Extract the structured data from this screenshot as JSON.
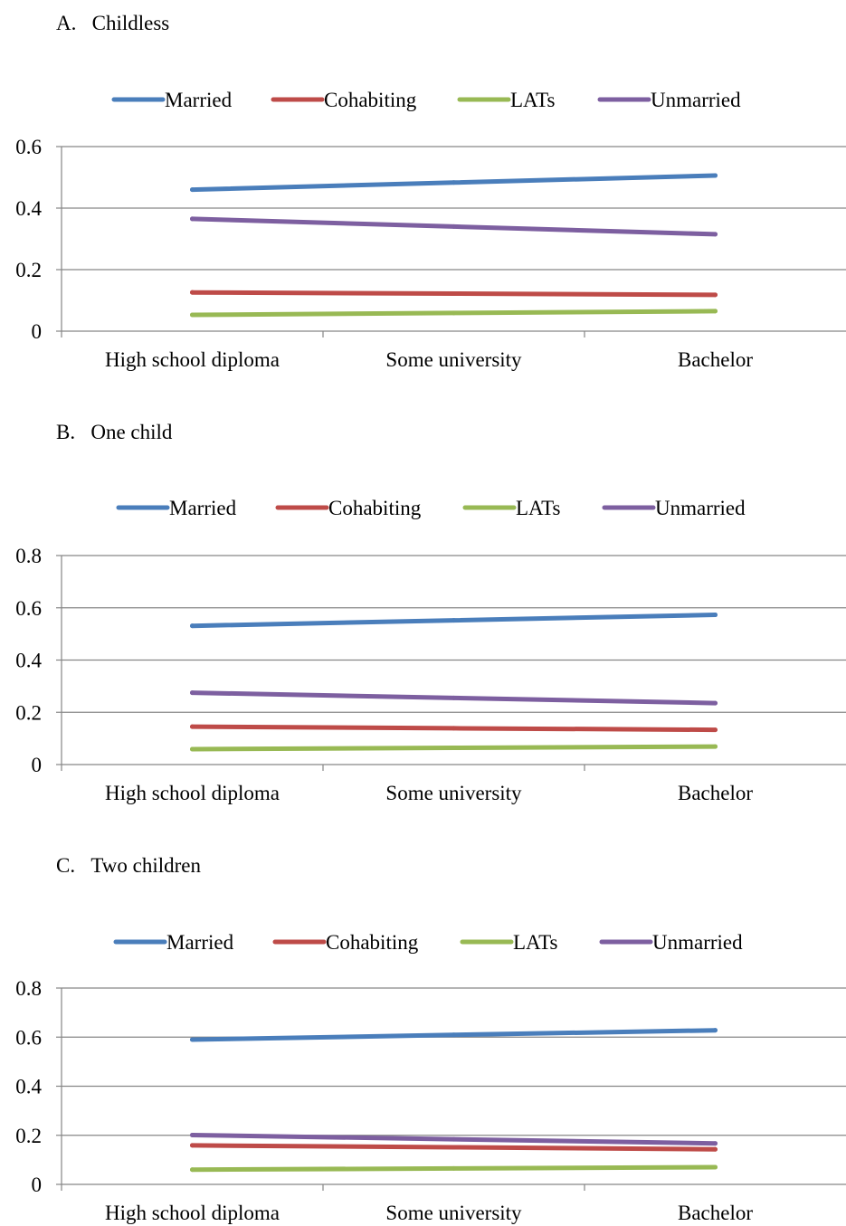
{
  "chart_data": [
    {
      "type": "line",
      "title": "A.   Childless",
      "categories": [
        "High school diploma",
        "Some university",
        "Bachelor"
      ],
      "ylim": [
        0,
        0.6
      ],
      "yticks": [
        "0",
        "0.2",
        "0.4",
        "0.6"
      ],
      "grid": true,
      "legend_position": "top",
      "series": [
        {
          "name": "Married",
          "color": "#4a7ebb",
          "values": [
            0.46,
            0.483,
            0.506
          ]
        },
        {
          "name": "Cohabiting",
          "color": "#be4b48",
          "values": [
            0.126,
            0.122,
            0.118
          ]
        },
        {
          "name": "LATs",
          "color": "#98b954",
          "values": [
            0.053,
            0.059,
            0.065
          ]
        },
        {
          "name": "Unmarried",
          "color": "#7d5fa0",
          "values": [
            0.365,
            0.34,
            0.315
          ]
        }
      ]
    },
    {
      "type": "line",
      "title": "B.   One child",
      "categories": [
        "High school diploma",
        "Some university",
        "Bachelor"
      ],
      "ylim": [
        0,
        0.8
      ],
      "yticks": [
        "0",
        "0.2",
        "0.4",
        "0.6",
        "0.8"
      ],
      "grid": true,
      "legend_position": "top",
      "series": [
        {
          "name": "Married",
          "color": "#4a7ebb",
          "values": [
            0.531,
            0.552,
            0.573
          ]
        },
        {
          "name": "Cohabiting",
          "color": "#be4b48",
          "values": [
            0.145,
            0.139,
            0.133
          ]
        },
        {
          "name": "LATs",
          "color": "#98b954",
          "values": [
            0.059,
            0.064,
            0.069
          ]
        },
        {
          "name": "Unmarried",
          "color": "#7d5fa0",
          "values": [
            0.275,
            0.255,
            0.235
          ]
        }
      ]
    },
    {
      "type": "line",
      "title": "C.   Two children",
      "categories": [
        "High school diploma",
        "Some university",
        "Bachelor"
      ],
      "ylim": [
        0,
        0.8
      ],
      "yticks": [
        "0",
        "0.2",
        "0.4",
        "0.6",
        "0.8"
      ],
      "grid": true,
      "legend_position": "top",
      "series": [
        {
          "name": "Married",
          "color": "#4a7ebb",
          "values": [
            0.59,
            0.609,
            0.628
          ]
        },
        {
          "name": "Cohabiting",
          "color": "#be4b48",
          "values": [
            0.159,
            0.151,
            0.143
          ]
        },
        {
          "name": "LATs",
          "color": "#98b954",
          "values": [
            0.06,
            0.065,
            0.07
          ]
        },
        {
          "name": "Unmarried",
          "color": "#7d5fa0",
          "values": [
            0.201,
            0.184,
            0.167
          ]
        }
      ]
    }
  ]
}
